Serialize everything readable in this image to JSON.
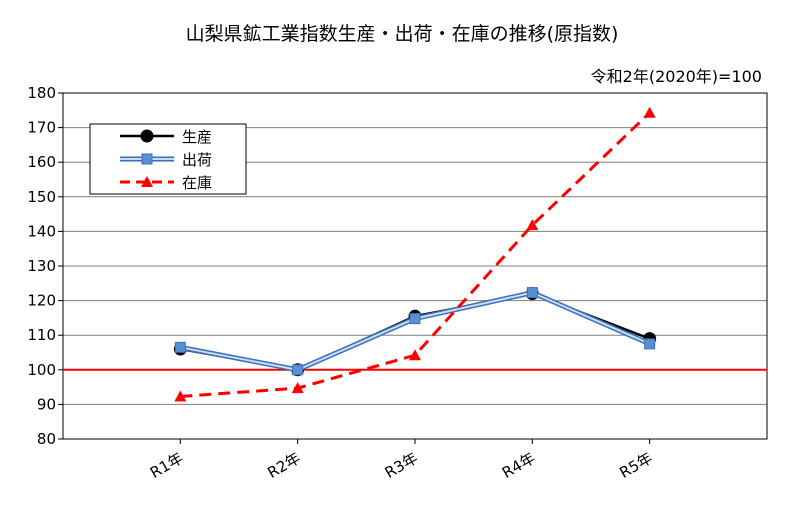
{
  "chart_data": {
    "type": "line",
    "title": "山梨県鉱工業指数生産・出荷・在庫の推移(原指数)",
    "note": "令和2年(2020年)=100",
    "xlabel": "",
    "ylabel": "",
    "categories": [
      "R1年",
      "R2年",
      "R3年",
      "R4年",
      "R5年"
    ],
    "ylim": [
      80,
      180
    ],
    "yticks": [
      80,
      90,
      100,
      110,
      120,
      130,
      140,
      150,
      160,
      170,
      180
    ],
    "grid": true,
    "legend_position": "top-left",
    "reference_line": {
      "value": 100,
      "color": "#ff0000"
    },
    "series": [
      {
        "name": "生産",
        "values": [
          106.0,
          100.0,
          115.5,
          122.0,
          109.0
        ],
        "color": "#000000",
        "marker": "circle",
        "style": "solid"
      },
      {
        "name": "出荷",
        "values": [
          106.5,
          100.0,
          114.8,
          122.3,
          107.5
        ],
        "color": "#5b8fd4",
        "marker": "square",
        "style": "solid"
      },
      {
        "name": "在庫",
        "values": [
          92.3,
          94.7,
          104.2,
          141.8,
          174.3
        ],
        "color": "#ff0000",
        "marker": "triangle",
        "style": "dashed"
      }
    ]
  }
}
